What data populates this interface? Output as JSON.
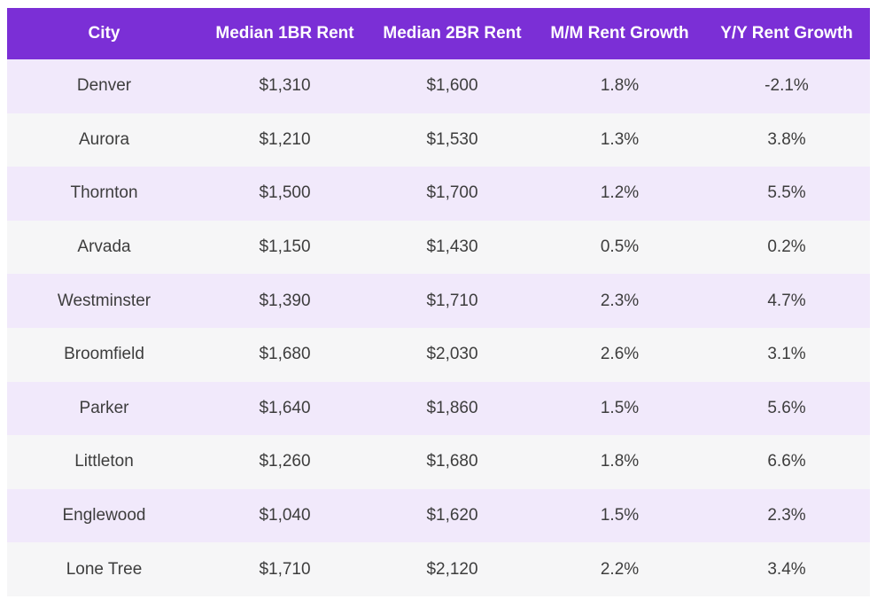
{
  "chart_data": {
    "type": "table",
    "columns": [
      "City",
      "Median 1BR Rent",
      "Median 2BR Rent",
      "M/M Rent Growth",
      "Y/Y Rent Growth"
    ],
    "rows": [
      [
        "Denver",
        "$1,310",
        "$1,600",
        "1.8%",
        "-2.1%"
      ],
      [
        "Aurora",
        "$1,210",
        "$1,530",
        "1.3%",
        "3.8%"
      ],
      [
        "Thornton",
        "$1,500",
        "$1,700",
        "1.2%",
        "5.5%"
      ],
      [
        "Arvada",
        "$1,150",
        "$1,430",
        "0.5%",
        "0.2%"
      ],
      [
        "Westminster",
        "$1,390",
        "$1,710",
        "2.3%",
        "4.7%"
      ],
      [
        "Broomfield",
        "$1,680",
        "$2,030",
        "2.6%",
        "3.1%"
      ],
      [
        "Parker",
        "$1,640",
        "$1,860",
        "1.5%",
        "5.6%"
      ],
      [
        "Littleton",
        "$1,260",
        "$1,680",
        "1.8%",
        "6.6%"
      ],
      [
        "Englewood",
        "$1,040",
        "$1,620",
        "1.5%",
        "2.3%"
      ],
      [
        "Lone Tree",
        "$1,710",
        "$2,120",
        "2.2%",
        "3.4%"
      ]
    ],
    "colors": {
      "header_bg": "#7b2fd6",
      "header_text": "#ffffff",
      "row_odd_bg": "#f1e9fb",
      "row_even_bg": "#f6f6f7",
      "cell_text": "#3d3d3d"
    }
  }
}
